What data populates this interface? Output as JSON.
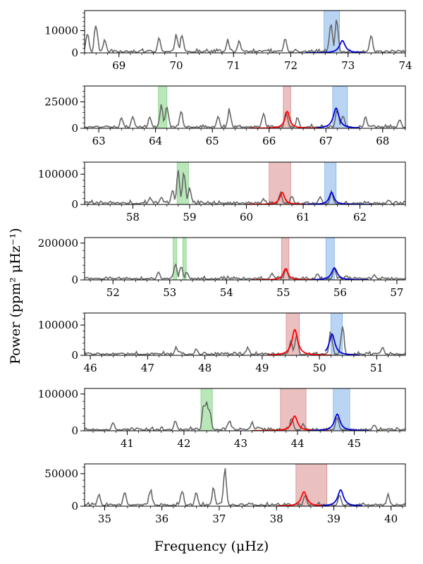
{
  "figure": {
    "ylabel": "Power (ppm² μHz⁻¹)",
    "xlabel": "Frequency (μHz)"
  },
  "colors": {
    "spectrum": "#666666",
    "red_fit": "#ff0000",
    "blue_fit": "#0000dd",
    "green_band": "#7fd37f",
    "red_band": "#d98c8c",
    "blue_band": "#7fb2ea"
  },
  "chart_data": [
    {
      "type": "line",
      "xlim": [
        68.4,
        74.0
      ],
      "ylim": [
        0,
        19000
      ],
      "xticks": [
        69,
        70,
        71,
        72,
        73,
        74
      ],
      "yticks": [
        0,
        10000
      ],
      "grid": false,
      "spectrum_peaks": [
        [
          68.45,
          10000
        ],
        [
          68.6,
          15500
        ],
        [
          68.75,
          7000
        ],
        [
          69.7,
          7500
        ],
        [
          70.0,
          9000
        ],
        [
          70.1,
          9000
        ],
        [
          70.9,
          6500
        ],
        [
          71.1,
          6000
        ],
        [
          71.9,
          7000
        ],
        [
          72.7,
          17000
        ],
        [
          72.8,
          16000
        ],
        [
          73.4,
          9500
        ]
      ],
      "bands": [
        {
          "color": "blue",
          "x0": 72.58,
          "x1": 72.85
        }
      ],
      "fits": [
        {
          "color": "blue",
          "center": 72.9,
          "width": 0.06,
          "height": 5500,
          "x0": 72.25,
          "x1": 73.3
        }
      ]
    },
    {
      "type": "line",
      "xlim": [
        62.75,
        68.4
      ],
      "ylim": [
        0,
        40000
      ],
      "xticks": [
        63,
        64,
        65,
        66,
        67,
        68
      ],
      "yticks": [
        0,
        25000
      ],
      "grid": false,
      "spectrum_peaks": [
        [
          63.4,
          11000
        ],
        [
          63.6,
          13000
        ],
        [
          63.9,
          12000
        ],
        [
          64.1,
          23000
        ],
        [
          64.2,
          26000
        ],
        [
          64.45,
          19000
        ],
        [
          65.1,
          12000
        ],
        [
          65.3,
          20000
        ],
        [
          65.9,
          16000
        ],
        [
          66.3,
          17000
        ],
        [
          66.5,
          12000
        ],
        [
          67.2,
          20000
        ],
        [
          67.3,
          15000
        ],
        [
          67.7,
          12000
        ],
        [
          68.3,
          10000
        ]
      ],
      "bands": [
        {
          "color": "green",
          "x0": 64.05,
          "x1": 64.2
        },
        {
          "color": "red",
          "x0": 66.25,
          "x1": 66.38
        },
        {
          "color": "blue",
          "x0": 67.12,
          "x1": 67.38
        }
      ],
      "fits": [
        {
          "color": "red",
          "center": 66.32,
          "width": 0.05,
          "height": 16000,
          "x0": 65.65,
          "x1": 66.9
        },
        {
          "color": "blue",
          "center": 67.18,
          "width": 0.06,
          "height": 19000,
          "x0": 66.85,
          "x1": 67.6
        }
      ]
    },
    {
      "type": "line",
      "xlim": [
        57.15,
        62.8
      ],
      "ylim": [
        0,
        140000
      ],
      "xticks": [
        58,
        59,
        60,
        61,
        62
      ],
      "yticks": [
        0,
        100000
      ],
      "grid": false,
      "spectrum_peaks": [
        [
          58.3,
          25000
        ],
        [
          58.5,
          30000
        ],
        [
          58.7,
          50000
        ],
        [
          58.8,
          120000
        ],
        [
          58.9,
          125000
        ],
        [
          59.0,
          60000
        ],
        [
          60.3,
          20000
        ],
        [
          60.6,
          45000
        ],
        [
          60.8,
          30000
        ],
        [
          61.3,
          30000
        ],
        [
          61.5,
          45000
        ],
        [
          62.5,
          15000
        ]
      ],
      "bands": [
        {
          "color": "green",
          "x0": 58.78,
          "x1": 58.98
        },
        {
          "color": "red",
          "x0": 60.4,
          "x1": 60.78
        },
        {
          "color": "blue",
          "x0": 61.38,
          "x1": 61.58
        }
      ],
      "fits": [
        {
          "color": "red",
          "center": 60.63,
          "width": 0.05,
          "height": 40000,
          "x0": 60.0,
          "x1": 61.15
        },
        {
          "color": "blue",
          "center": 61.5,
          "width": 0.05,
          "height": 40000,
          "x0": 61.0,
          "x1": 62.2
        }
      ]
    },
    {
      "type": "line",
      "xlim": [
        51.5,
        57.15
      ],
      "ylim": [
        0,
        230000
      ],
      "xticks": [
        52,
        53,
        54,
        55,
        56,
        57
      ],
      "yticks": [
        0,
        200000
      ],
      "grid": false,
      "spectrum_peaks": [
        [
          52.8,
          45000
        ],
        [
          53.1,
          90000
        ],
        [
          53.2,
          80000
        ],
        [
          53.3,
          50000
        ],
        [
          54.8,
          40000
        ],
        [
          55.05,
          70000
        ],
        [
          55.6,
          40000
        ],
        [
          55.9,
          70000
        ],
        [
          56.6,
          30000
        ]
      ],
      "bands": [
        {
          "color": "green",
          "x0": 53.06,
          "x1": 53.12
        },
        {
          "color": "green",
          "x0": 53.23,
          "x1": 53.29
        },
        {
          "color": "red",
          "x0": 54.97,
          "x1": 55.1
        },
        {
          "color": "blue",
          "x0": 55.75,
          "x1": 55.9
        }
      ],
      "fits": [
        {
          "color": "red",
          "center": 55.04,
          "width": 0.05,
          "height": 60000,
          "x0": 54.45,
          "x1": 55.6
        },
        {
          "color": "blue",
          "center": 55.9,
          "width": 0.06,
          "height": 65000,
          "x0": 55.5,
          "x1": 56.5
        }
      ]
    },
    {
      "type": "line",
      "xlim": [
        45.9,
        51.5
      ],
      "ylim": [
        0,
        140000
      ],
      "xticks": [
        46,
        47,
        48,
        49,
        50,
        51
      ],
      "yticks": [
        0,
        100000
      ],
      "grid": false,
      "spectrum_peaks": [
        [
          47.5,
          30000
        ],
        [
          47.85,
          25000
        ],
        [
          48.75,
          30000
        ],
        [
          49.5,
          50000
        ],
        [
          49.6,
          80000
        ],
        [
          50.2,
          90000
        ],
        [
          50.4,
          110000
        ],
        [
          51.1,
          30000
        ]
      ],
      "bands": [
        {
          "color": "red",
          "x0": 49.42,
          "x1": 49.65
        },
        {
          "color": "blue",
          "x0": 50.2,
          "x1": 50.4
        }
      ],
      "fits": [
        {
          "color": "red",
          "center": 49.57,
          "width": 0.06,
          "height": 85000,
          "x0": 49.1,
          "x1": 50.2
        },
        {
          "color": "blue",
          "center": 50.22,
          "width": 0.06,
          "height": 70000,
          "x0": 50.1,
          "x1": 50.7
        }
      ]
    },
    {
      "type": "line",
      "xlim": [
        40.25,
        45.9
      ],
      "ylim": [
        0,
        115000
      ],
      "xticks": [
        41,
        42,
        43,
        44,
        45
      ],
      "yticks": [
        0,
        100000
      ],
      "grid": false,
      "spectrum_peaks": [
        [
          40.75,
          25000
        ],
        [
          41.85,
          30000
        ],
        [
          42.35,
          85000
        ],
        [
          42.4,
          105000
        ],
        [
          42.45,
          70000
        ],
        [
          42.8,
          30000
        ],
        [
          43.2,
          25000
        ],
        [
          43.9,
          40000
        ],
        [
          44.1,
          20000
        ],
        [
          44.7,
          45000
        ],
        [
          45.35,
          20000
        ]
      ],
      "bands": [
        {
          "color": "green",
          "x0": 42.3,
          "x1": 42.5
        },
        {
          "color": "red",
          "x0": 43.7,
          "x1": 44.15
        },
        {
          "color": "blue",
          "x0": 44.63,
          "x1": 44.92
        }
      ],
      "fits": [
        {
          "color": "red",
          "center": 43.95,
          "width": 0.06,
          "height": 40000,
          "x0": 43.2,
          "x1": 44.55
        },
        {
          "color": "blue",
          "center": 44.7,
          "width": 0.06,
          "height": 45000,
          "x0": 44.2,
          "x1": 45.25
        }
      ]
    },
    {
      "type": "line",
      "xlim": [
        34.65,
        40.25
      ],
      "ylim": [
        0,
        65000
      ],
      "xticks": [
        35,
        36,
        37,
        38,
        39,
        40
      ],
      "yticks": [
        0,
        50000
      ],
      "grid": false,
      "spectrum_peaks": [
        [
          34.9,
          20000
        ],
        [
          35.35,
          25000
        ],
        [
          35.8,
          30000
        ],
        [
          36.35,
          28000
        ],
        [
          36.6,
          25000
        ],
        [
          36.9,
          30000
        ],
        [
          37.1,
          60000
        ],
        [
          38.5,
          20000
        ],
        [
          39.1,
          20000
        ],
        [
          39.95,
          20000
        ]
      ],
      "bands": [
        {
          "color": "red",
          "x0": 38.34,
          "x1": 38.88
        }
      ],
      "fits": [
        {
          "color": "red",
          "center": 38.48,
          "width": 0.06,
          "height": 22000,
          "x0": 38.0,
          "x1": 38.85
        },
        {
          "color": "blue",
          "center": 39.12,
          "width": 0.06,
          "height": 25000,
          "x0": 38.8,
          "x1": 39.5
        }
      ]
    }
  ]
}
